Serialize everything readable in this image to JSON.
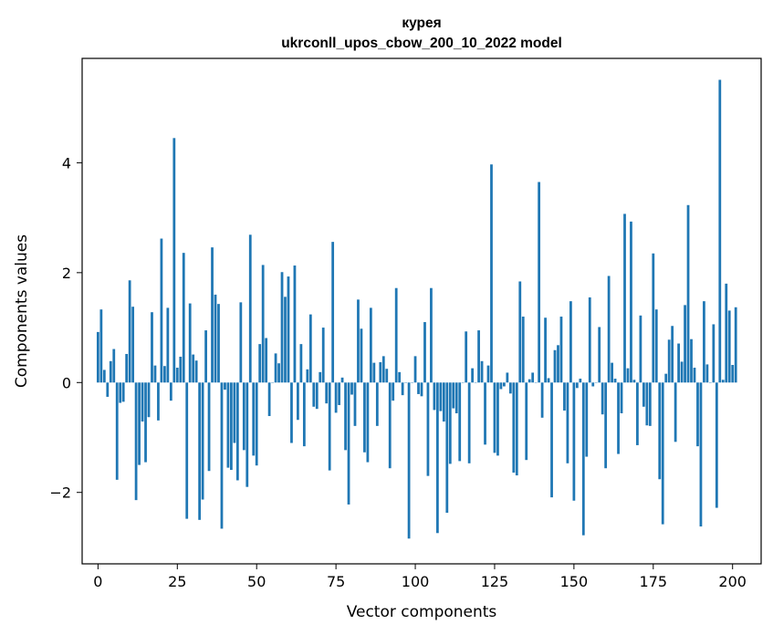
{
  "chart_data": {
    "type": "bar",
    "title_line1": "курея",
    "title_line2": "ukrconll_upos_cbow_200_10_2022 model",
    "xlabel": "Vector components",
    "ylabel": "Components values",
    "xlim": [
      -5,
      209
    ],
    "ylim": [
      -3.3,
      5.9
    ],
    "x_ticks": [
      0,
      25,
      50,
      75,
      100,
      125,
      150,
      175,
      200
    ],
    "y_ticks": [
      -2,
      0,
      2,
      4
    ],
    "y_tick_labels": [
      "−2",
      "0",
      "2",
      "4"
    ],
    "grid": false,
    "bar_color": "#1f77b4",
    "values": [
      0.92,
      1.33,
      0.23,
      -0.26,
      0.39,
      0.61,
      -1.77,
      -0.37,
      -0.35,
      0.52,
      1.86,
      1.38,
      -2.14,
      -1.5,
      -0.71,
      -1.45,
      -0.63,
      1.28,
      0.31,
      -0.69,
      2.62,
      0.3,
      1.36,
      -0.33,
      4.45,
      0.27,
      0.47,
      2.36,
      -2.48,
      1.44,
      0.51,
      0.4,
      -2.5,
      -2.13,
      0.95,
      -1.61,
      2.46,
      1.6,
      1.43,
      -2.66,
      -0.13,
      -1.55,
      -1.59,
      -1.1,
      -1.78,
      1.46,
      -1.23,
      -1.9,
      2.69,
      -1.33,
      -1.51,
      0.7,
      2.14,
      0.81,
      -0.61,
      0.0,
      0.53,
      0.35,
      2.01,
      1.56,
      1.93,
      -1.1,
      2.13,
      -0.68,
      0.7,
      -1.16,
      0.24,
      1.24,
      -0.44,
      -0.48,
      0.19,
      1.0,
      -0.38,
      -1.6,
      2.56,
      -0.55,
      -0.41,
      0.09,
      -1.23,
      -2.22,
      -0.22,
      -0.79,
      1.51,
      0.98,
      -1.27,
      -1.45,
      1.36,
      0.36,
      -0.79,
      0.37,
      0.48,
      0.25,
      -1.56,
      -0.33,
      1.72,
      0.19,
      -0.23,
      0.0,
      -2.84,
      0.0,
      0.48,
      -0.21,
      -0.25,
      1.1,
      -1.7,
      1.72,
      -0.5,
      -2.74,
      -0.52,
      -0.71,
      -2.37,
      -1.48,
      -0.47,
      -0.56,
      -1.43,
      0.0,
      0.93,
      -1.47,
      0.26,
      0.0,
      0.95,
      0.39,
      -1.13,
      0.31,
      3.97,
      -1.28,
      -1.33,
      -0.12,
      -0.07,
      0.18,
      -0.2,
      -1.64,
      -1.69,
      1.84,
      1.2,
      -1.41,
      0.06,
      0.18,
      0.0,
      3.65,
      -0.64,
      1.18,
      0.08,
      -2.09,
      0.59,
      0.68,
      1.2,
      -0.51,
      -1.47,
      1.48,
      -2.15,
      -0.1,
      0.07,
      -2.78,
      -1.35,
      1.55,
      -0.07,
      0.0,
      1.01,
      -0.58,
      -1.56,
      1.94,
      0.36,
      0.07,
      -1.3,
      -0.56,
      3.07,
      0.26,
      2.93,
      0.05,
      -1.14,
      1.22,
      -0.44,
      -0.78,
      -0.79,
      2.35,
      1.33,
      -1.76,
      -2.58,
      0.16,
      0.78,
      1.03,
      -1.08,
      0.71,
      0.38,
      1.41,
      3.23,
      0.79,
      0.27,
      -1.16,
      -2.62,
      1.48,
      0.33,
      0.0,
      1.06,
      -2.28,
      5.51,
      0.05,
      1.8,
      1.31,
      0.32,
      1.37
    ]
  }
}
